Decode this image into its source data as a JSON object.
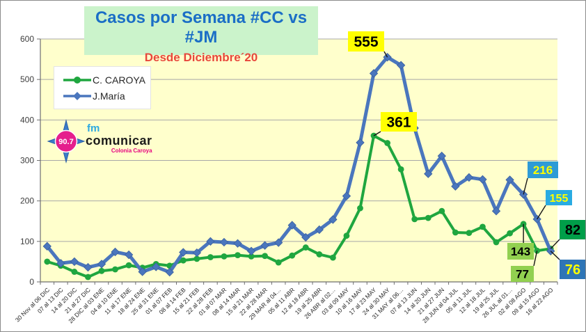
{
  "header": {
    "title": "Casos por Semana #CC vs #JM",
    "subtitle": "Desde Diciembre´20"
  },
  "legend": {
    "items": [
      {
        "label": "C. CAROYA",
        "marker": "circle"
      },
      {
        "label": "J.María",
        "marker": "diamond"
      }
    ]
  },
  "logo": {
    "frequency": "90.7",
    "fm": "fm",
    "name": "comunicar",
    "tagline": "Colonia Caroya"
  },
  "chart_data": {
    "type": "line",
    "title": "Casos por Semana #CC vs #JM",
    "subtitle": "Desde Diciembre´20",
    "xlabel": "",
    "ylabel": "",
    "ylim": [
      0,
      600
    ],
    "yticks": [
      0,
      100,
      200,
      300,
      400,
      500,
      600
    ],
    "grid": true,
    "plot_bg": "#ffffcc",
    "legend_position": "top-left-inside",
    "categories": [
      "30 Nov al 06 DIC",
      "07 al 13 DIC",
      "14 al 20 DIC",
      "21 al 27 DIC",
      "28 DIC al 03 ENE",
      "04 al 10 ENE",
      "11 al 17 ENE",
      "18 al 24 ENE",
      "25 al 31 ENE",
      "01 al 07 FEB",
      "08 al 14 FEB",
      "15 al 21 FEB",
      "22 al 28 FEB",
      "01 al 07 MAR",
      "08 al 14 MAR",
      "15 al 21 MAR",
      "22 al 28 MAR",
      "29 MAR al 04…",
      "05 al 11 ABR",
      "12 al 18 ABR",
      "19 al 25 ABR",
      "26 ABR al 02…",
      "03 al 09 MAY",
      "10 al 16 MAY",
      "17 al 23 MAY",
      "24 al 30 MAY",
      "31 MAY al 06…",
      "07 al 13 JUN",
      "14 al 20 JUN",
      "21 al 27 JUN",
      "28 JUN al 04 JUL",
      "05 al 11 JUL",
      "12 al 18 JUL",
      "19 al 25 JUL",
      "26 JUL al 01…",
      "02 al 08 AGO",
      "09 al 15 AGO",
      "16 al 22 AGO"
    ],
    "series": [
      {
        "name": "C. CAROYA",
        "color": "#1fa63f",
        "marker": "circle",
        "values": [
          50,
          40,
          25,
          12,
          27,
          31,
          41,
          35,
          44,
          40,
          53,
          57,
          61,
          63,
          66,
          63,
          64,
          48,
          65,
          85,
          68,
          60,
          114,
          182,
          361,
          343,
          278,
          155,
          158,
          175,
          122,
          121,
          136,
          98,
          120,
          143,
          77,
          82
        ]
      },
      {
        "name": "J.María",
        "color": "#4a76bd",
        "marker": "diamond",
        "values": [
          88,
          46,
          50,
          36,
          44,
          74,
          67,
          25,
          37,
          24,
          73,
          72,
          100,
          98,
          95,
          76,
          90,
          97,
          140,
          110,
          129,
          154,
          212,
          344,
          515,
          555,
          535,
          380,
          267,
          311,
          236,
          258,
          253,
          175,
          252,
          216,
          155,
          76
        ]
      }
    ],
    "callouts": [
      {
        "text": "555",
        "series": 1,
        "index": 25,
        "bg": "#ffff00",
        "fg": "#000000"
      },
      {
        "text": "361",
        "series": 0,
        "index": 24,
        "bg": "#ffff00",
        "fg": "#000000"
      },
      {
        "text": "216",
        "series": 1,
        "index": 35,
        "bg": "#2e9bd6",
        "fg": "#ffff00"
      },
      {
        "text": "155",
        "series": 1,
        "index": 36,
        "bg": "#29abe2",
        "fg": "#ffff00"
      },
      {
        "text": "143",
        "series": 0,
        "index": 35,
        "bg": "#92d050",
        "fg": "#000000"
      },
      {
        "text": "77",
        "series": 0,
        "index": 36,
        "bg": "#92d050",
        "fg": "#000000"
      },
      {
        "text": "82",
        "series": 0,
        "index": 37,
        "bg": "#009e49",
        "fg": "#000000"
      },
      {
        "text": "76",
        "series": 1,
        "index": 37,
        "bg": "#2e75b6",
        "fg": "#ffff00"
      }
    ]
  }
}
